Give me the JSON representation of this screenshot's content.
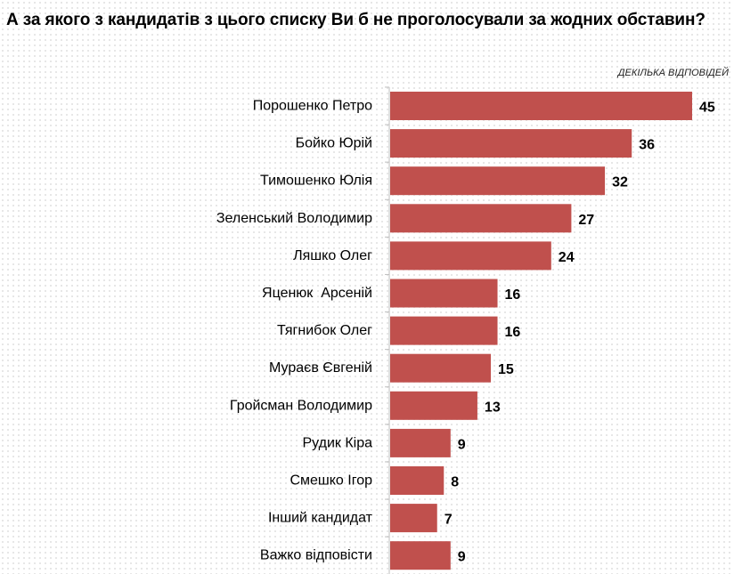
{
  "title": "А за якого з кандидатів з цього списку Ви б не проголосували за жодних обставин?",
  "note": "ДЕКІЛЬКА ВІДПОВІДЕЙ",
  "colors": {
    "bar": "#c0504d",
    "axis": "#bfbfbf",
    "text": "#000000"
  },
  "chart_data": {
    "type": "bar",
    "orientation": "horizontal",
    "title": "А за якого з кандидатів з цього списку Ви б не проголосували за жодних обставин?",
    "categories": [
      "Порошенко Петро",
      "Бойко Юрій",
      "Тимошенко Юлія",
      "Зеленський Володимир",
      "Ляшко Олег",
      "Яценюк  Арсеній",
      "Тягнибок Олег",
      "Мураєв Євгеній",
      "Гройсман Володимир",
      "Рудик Кіра",
      "Смешко Ігор",
      "Інший кандидат",
      "Важко відповісти"
    ],
    "values": [
      45,
      36,
      32,
      27,
      24,
      16,
      16,
      15,
      13,
      9,
      8,
      7,
      9
    ],
    "value_labels": [
      "45",
      "36",
      "32",
      "27",
      "24",
      "16",
      "16",
      "15",
      "13",
      "9",
      "8",
      "7",
      "9"
    ],
    "xlim": [
      0,
      45
    ],
    "xlabel": "",
    "ylabel": "",
    "grid": false,
    "legend": "none"
  }
}
